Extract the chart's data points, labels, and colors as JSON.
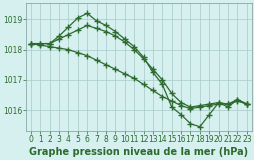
{
  "series": [
    {
      "x": [
        0,
        1,
        2,
        3,
        4,
        5,
        6,
        7,
        8,
        9,
        10,
        11,
        12,
        13,
        14,
        15,
        16,
        17,
        18,
        19,
        20,
        21,
        22,
        23
      ],
      "y": [
        1018.2,
        1018.2,
        1018.2,
        1018.45,
        1018.75,
        1019.05,
        1019.2,
        1018.95,
        1018.8,
        1018.6,
        1018.35,
        1018.1,
        1017.75,
        1017.25,
        1016.85,
        1016.1,
        1015.85,
        1015.55,
        1015.45,
        1015.85,
        1016.25,
        1016.1,
        1016.35,
        1016.2
      ]
    },
    {
      "x": [
        0,
        1,
        2,
        3,
        4,
        5,
        6,
        7,
        8,
        9,
        10,
        11,
        12,
        13,
        14,
        15,
        16,
        17,
        18,
        19,
        20,
        21,
        22,
        23
      ],
      "y": [
        1018.2,
        1018.2,
        1018.2,
        1018.35,
        1018.5,
        1018.65,
        1018.8,
        1018.7,
        1018.6,
        1018.45,
        1018.25,
        1018.0,
        1017.7,
        1017.35,
        1017.0,
        1016.55,
        1016.25,
        1016.1,
        1016.15,
        1016.2,
        1016.25,
        1016.2,
        1016.35,
        1016.2
      ]
    },
    {
      "x": [
        0,
        1,
        2,
        3,
        4,
        5,
        6,
        7,
        8,
        9,
        10,
        11,
        12,
        13,
        14,
        15,
        16,
        17,
        18,
        19,
        20,
        21,
        22,
        23
      ],
      "y": [
        1018.2,
        1018.15,
        1018.1,
        1018.05,
        1018.0,
        1017.9,
        1017.8,
        1017.65,
        1017.5,
        1017.35,
        1017.2,
        1017.05,
        1016.85,
        1016.65,
        1016.45,
        1016.3,
        1016.15,
        1016.05,
        1016.1,
        1016.15,
        1016.2,
        1016.2,
        1016.3,
        1016.2
      ]
    }
  ],
  "line_color": "#2d6a2d",
  "marker": "+",
  "markersize": 4,
  "markeredgewidth": 1.0,
  "linewidth": 0.9,
  "background_color": "#d6f0f0",
  "grid_color": "#a8caca",
  "tick_color": "#2d6a2d",
  "xlabel": "Graphe pression niveau de la mer (hPa)",
  "xlabel_fontsize": 7,
  "xlabel_color": "#2d6a2d",
  "ylim": [
    1015.3,
    1019.55
  ],
  "xlim": [
    -0.5,
    23.5
  ],
  "yticks": [
    1016,
    1017,
    1018,
    1019
  ],
  "xticks": [
    0,
    1,
    2,
    3,
    4,
    5,
    6,
    7,
    8,
    9,
    10,
    11,
    12,
    13,
    14,
    15,
    16,
    17,
    18,
    19,
    20,
    21,
    22,
    23
  ],
  "tick_fontsize": 5.5,
  "spine_color": "#7a9a9a",
  "figsize": [
    2.55,
    1.6
  ],
  "dpi": 100
}
